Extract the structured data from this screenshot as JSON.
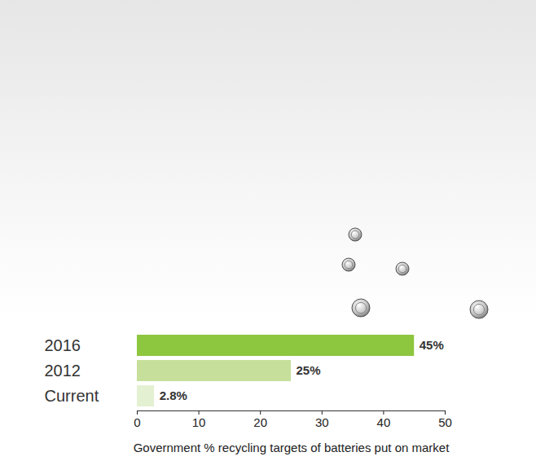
{
  "chart_data": {
    "type": "bar",
    "orientation": "horizontal",
    "categories": [
      "2016",
      "2012",
      "Current"
    ],
    "values": [
      45,
      25,
      2.8
    ],
    "value_labels": [
      "45%",
      "25%",
      "2.8%"
    ],
    "colors": [
      "#8dc63f",
      "#c6e09c",
      "#e4f0d2"
    ],
    "xlabel": "Government % recycling targets of batteries put on market",
    "xlim": [
      0,
      50
    ],
    "xticks": [
      0,
      10,
      20,
      30,
      40,
      50
    ],
    "data_labels": true,
    "grid": false
  }
}
